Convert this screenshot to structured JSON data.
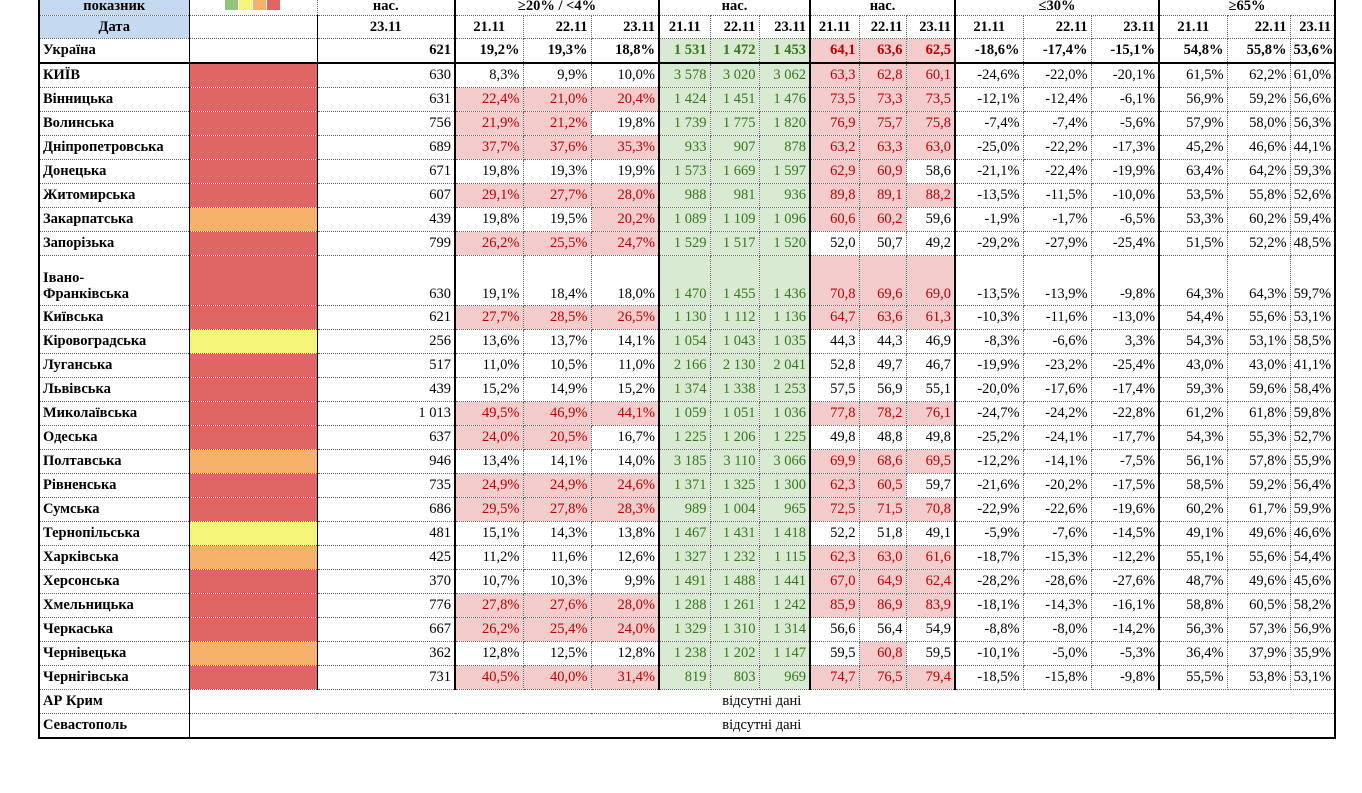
{
  "colors": {
    "red": "#e06666",
    "orange": "#f6b26b",
    "yellow": "#f5f57a",
    "green": "#93c47d",
    "header_blue": "#c5d9f1",
    "pink": "#f4cccc",
    "light_green": "#d9ead3"
  },
  "header": {
    "indicator_label": "показник",
    "legend_swatches": [
      "green",
      "yellow",
      "orange",
      "red"
    ],
    "col_pop_top": "нас.",
    "group1_top": "≥20% / <4%",
    "group2_top": "нас.",
    "group3_top": "нас.",
    "group4_top": "≤30%",
    "group5_top": "≥65%",
    "date_label": "Дата",
    "date_single": "23.11",
    "dates": [
      "21.11",
      "22.11",
      "23.11"
    ]
  },
  "ukraine": {
    "name": "Україна",
    "v": "621",
    "a": [
      "19,2%",
      "19,3%",
      "18,8%"
    ],
    "b": [
      "1 531",
      "1 472",
      "1 453"
    ],
    "c": [
      "64,1",
      "63,6",
      "62,5"
    ],
    "d": [
      "-18,6%",
      "-17,4%",
      "-15,1%"
    ],
    "e": [
      "54,8%",
      "55,8%",
      "53,6%"
    ]
  },
  "rows": [
    {
      "name": "КИЇВ",
      "cat": "red",
      "v": "630",
      "a": [
        "8,3%",
        "9,9%",
        "10,0%"
      ],
      "b": [
        "3 578",
        "3 020",
        "3 062"
      ],
      "c": [
        "63,3",
        "62,8",
        "60,1"
      ],
      "d": [
        "-24,6%",
        "-22,0%",
        "-20,1%"
      ],
      "e": [
        "61,5%",
        "62,2%",
        "61,0%"
      ]
    },
    {
      "name": "Вінницька",
      "cat": "red",
      "v": "631",
      "a": [
        "22,4%",
        "21,0%",
        "20,4%"
      ],
      "b": [
        "1 424",
        "1 451",
        "1 476"
      ],
      "c": [
        "73,5",
        "73,3",
        "73,5"
      ],
      "d": [
        "-12,1%",
        "-12,4%",
        "-6,1%"
      ],
      "e": [
        "56,9%",
        "59,2%",
        "56,6%"
      ]
    },
    {
      "name": "Волинська",
      "cat": "red",
      "v": "756",
      "a": [
        "21,9%",
        "21,2%",
        "19,8%"
      ],
      "b": [
        "1 739",
        "1 775",
        "1 820"
      ],
      "c": [
        "76,9",
        "75,7",
        "75,8"
      ],
      "d": [
        "-7,4%",
        "-7,4%",
        "-5,6%"
      ],
      "e": [
        "57,9%",
        "58,0%",
        "56,3%"
      ]
    },
    {
      "name": "Дніпропетровська",
      "cat": "red",
      "v": "689",
      "a": [
        "37,7%",
        "37,6%",
        "35,3%"
      ],
      "b": [
        "933",
        "907",
        "878"
      ],
      "c": [
        "63,2",
        "63,3",
        "63,0"
      ],
      "d": [
        "-25,0%",
        "-22,2%",
        "-17,3%"
      ],
      "e": [
        "45,2%",
        "46,6%",
        "44,1%"
      ]
    },
    {
      "name": "Донецька",
      "cat": "red",
      "v": "671",
      "a": [
        "19,8%",
        "19,3%",
        "19,9%"
      ],
      "b": [
        "1 573",
        "1 669",
        "1 597"
      ],
      "c": [
        "62,9",
        "60,9",
        "58,6"
      ],
      "d": [
        "-21,1%",
        "-22,4%",
        "-19,9%"
      ],
      "e": [
        "63,4%",
        "64,2%",
        "59,3%"
      ]
    },
    {
      "name": "Житомирська",
      "cat": "red",
      "v": "607",
      "a": [
        "29,1%",
        "27,7%",
        "28,0%"
      ],
      "b": [
        "988",
        "981",
        "936"
      ],
      "c": [
        "89,8",
        "89,1",
        "88,2"
      ],
      "d": [
        "-13,5%",
        "-11,5%",
        "-10,0%"
      ],
      "e": [
        "53,5%",
        "55,8%",
        "52,6%"
      ]
    },
    {
      "name": "Закарпатська",
      "cat": "orange",
      "v": "439",
      "a": [
        "19,8%",
        "19,5%",
        "20,2%"
      ],
      "b": [
        "1 089",
        "1 109",
        "1 096"
      ],
      "c": [
        "60,6",
        "60,2",
        "59,6"
      ],
      "d": [
        "-1,9%",
        "-1,7%",
        "-6,5%"
      ],
      "e": [
        "53,3%",
        "60,2%",
        "59,4%"
      ]
    },
    {
      "name": "Запорізька",
      "cat": "red",
      "v": "799",
      "a": [
        "26,2%",
        "25,5%",
        "24,7%"
      ],
      "b": [
        "1 529",
        "1 517",
        "1 520"
      ],
      "c": [
        "52,0",
        "50,7",
        "49,2"
      ],
      "d": [
        "-29,2%",
        "-27,9%",
        "-25,4%"
      ],
      "e": [
        "51,5%",
        "52,2%",
        "48,5%"
      ]
    },
    {
      "name": "Івано-",
      "name2": "Франківська",
      "cat": "red",
      "v": "630",
      "a": [
        "19,1%",
        "18,4%",
        "18,0%"
      ],
      "b": [
        "1 470",
        "1 455",
        "1 436"
      ],
      "c": [
        "70,8",
        "69,6",
        "69,0"
      ],
      "d": [
        "-13,5%",
        "-13,9%",
        "-9,8%"
      ],
      "e": [
        "64,3%",
        "64,3%",
        "59,7%"
      ]
    },
    {
      "name": "Київська",
      "cat": "red",
      "v": "621",
      "a": [
        "27,7%",
        "28,5%",
        "26,5%"
      ],
      "b": [
        "1 130",
        "1 112",
        "1 136"
      ],
      "c": [
        "64,7",
        "63,6",
        "61,3"
      ],
      "d": [
        "-10,3%",
        "-11,6%",
        "-13,0%"
      ],
      "e": [
        "54,4%",
        "55,6%",
        "53,1%"
      ]
    },
    {
      "name": "Кіровоградська",
      "cat": "yellow",
      "v": "256",
      "a": [
        "13,6%",
        "13,7%",
        "14,1%"
      ],
      "b": [
        "1 054",
        "1 043",
        "1 035"
      ],
      "c": [
        "44,3",
        "44,3",
        "46,9"
      ],
      "d": [
        "-8,3%",
        "-6,6%",
        "3,3%"
      ],
      "e": [
        "54,3%",
        "53,1%",
        "58,5%"
      ]
    },
    {
      "name": "Луганська",
      "cat": "red",
      "v": "517",
      "a": [
        "11,0%",
        "10,5%",
        "11,0%"
      ],
      "b": [
        "2 166",
        "2 130",
        "2 041"
      ],
      "c": [
        "52,8",
        "49,7",
        "46,7"
      ],
      "d": [
        "-19,9%",
        "-23,2%",
        "-25,4%"
      ],
      "e": [
        "43,0%",
        "43,0%",
        "41,1%"
      ]
    },
    {
      "name": "Львівська",
      "cat": "red",
      "v": "439",
      "a": [
        "15,2%",
        "14,9%",
        "15,2%"
      ],
      "b": [
        "1 374",
        "1 338",
        "1 253"
      ],
      "c": [
        "57,5",
        "56,9",
        "55,1"
      ],
      "d": [
        "-20,0%",
        "-17,6%",
        "-17,4%"
      ],
      "e": [
        "59,3%",
        "59,6%",
        "58,4%"
      ]
    },
    {
      "name": "Миколаївська",
      "cat": "red",
      "v": "1 013",
      "a": [
        "49,5%",
        "46,9%",
        "44,1%"
      ],
      "b": [
        "1 059",
        "1 051",
        "1 036"
      ],
      "c": [
        "77,8",
        "78,2",
        "76,1"
      ],
      "d": [
        "-24,7%",
        "-24,2%",
        "-22,8%"
      ],
      "e": [
        "61,2%",
        "61,8%",
        "59,8%"
      ]
    },
    {
      "name": "Одеська",
      "cat": "red",
      "v": "637",
      "a": [
        "24,0%",
        "20,5%",
        "16,7%"
      ],
      "b": [
        "1 225",
        "1 206",
        "1 225"
      ],
      "c": [
        "49,8",
        "48,8",
        "49,8"
      ],
      "d": [
        "-25,2%",
        "-24,1%",
        "-17,7%"
      ],
      "e": [
        "54,3%",
        "55,3%",
        "52,7%"
      ]
    },
    {
      "name": "Полтавська",
      "cat": "orange",
      "v": "946",
      "a": [
        "13,4%",
        "14,1%",
        "14,0%"
      ],
      "b": [
        "3 185",
        "3 110",
        "3 066"
      ],
      "c": [
        "69,9",
        "68,6",
        "69,5"
      ],
      "d": [
        "-12,2%",
        "-14,1%",
        "-7,5%"
      ],
      "e": [
        "56,1%",
        "57,8%",
        "55,9%"
      ]
    },
    {
      "name": "Рівненська",
      "cat": "red",
      "v": "735",
      "a": [
        "24,9%",
        "24,9%",
        "24,6%"
      ],
      "b": [
        "1 371",
        "1 325",
        "1 300"
      ],
      "c": [
        "62,3",
        "60,5",
        "59,7"
      ],
      "d": [
        "-21,6%",
        "-20,2%",
        "-17,5%"
      ],
      "e": [
        "58,5%",
        "59,2%",
        "56,4%"
      ]
    },
    {
      "name": "Сумська",
      "cat": "red",
      "v": "686",
      "a": [
        "29,5%",
        "27,8%",
        "28,3%"
      ],
      "b": [
        "989",
        "1 004",
        "965"
      ],
      "c": [
        "72,5",
        "71,5",
        "70,8"
      ],
      "d": [
        "-22,9%",
        "-22,6%",
        "-19,6%"
      ],
      "e": [
        "60,2%",
        "61,7%",
        "59,9%"
      ]
    },
    {
      "name": "Тернопільська",
      "cat": "yellow",
      "v": "481",
      "a": [
        "15,1%",
        "14,3%",
        "13,8%"
      ],
      "b": [
        "1 467",
        "1 431",
        "1 418"
      ],
      "c": [
        "52,2",
        "51,8",
        "49,1"
      ],
      "d": [
        "-5,9%",
        "-7,6%",
        "-14,5%"
      ],
      "e": [
        "49,1%",
        "49,6%",
        "46,6%"
      ]
    },
    {
      "name": "Харківська",
      "cat": "orange",
      "v": "425",
      "a": [
        "11,2%",
        "11,6%",
        "12,6%"
      ],
      "b": [
        "1 327",
        "1 232",
        "1 115"
      ],
      "c": [
        "62,3",
        "63,0",
        "61,6"
      ],
      "d": [
        "-18,7%",
        "-15,3%",
        "-12,2%"
      ],
      "e": [
        "55,1%",
        "55,6%",
        "54,4%"
      ]
    },
    {
      "name": "Херсонська",
      "cat": "red",
      "v": "370",
      "a": [
        "10,7%",
        "10,3%",
        "9,9%"
      ],
      "b": [
        "1 491",
        "1 488",
        "1 441"
      ],
      "c": [
        "67,0",
        "64,9",
        "62,4"
      ],
      "d": [
        "-28,2%",
        "-28,6%",
        "-27,6%"
      ],
      "e": [
        "48,7%",
        "49,6%",
        "45,6%"
      ]
    },
    {
      "name": "Хмельницька",
      "cat": "red",
      "v": "776",
      "a": [
        "27,8%",
        "27,6%",
        "28,0%"
      ],
      "b": [
        "1 288",
        "1 261",
        "1 242"
      ],
      "c": [
        "85,9",
        "86,9",
        "83,9"
      ],
      "d": [
        "-18,1%",
        "-14,3%",
        "-16,1%"
      ],
      "e": [
        "58,8%",
        "60,5%",
        "58,2%"
      ]
    },
    {
      "name": "Черкаська",
      "cat": "red",
      "v": "667",
      "a": [
        "26,2%",
        "25,4%",
        "24,0%"
      ],
      "b": [
        "1 329",
        "1 310",
        "1 314"
      ],
      "c": [
        "56,6",
        "56,4",
        "54,9"
      ],
      "d": [
        "-8,8%",
        "-8,0%",
        "-14,2%"
      ],
      "e": [
        "56,3%",
        "57,3%",
        "56,9%"
      ]
    },
    {
      "name": "Чернівецька",
      "cat": "orange",
      "v": "362",
      "a": [
        "12,8%",
        "12,5%",
        "12,8%"
      ],
      "b": [
        "1 238",
        "1 202",
        "1 147"
      ],
      "c": [
        "59,5",
        "60,8",
        "59,5"
      ],
      "d": [
        "-10,1%",
        "-5,0%",
        "-5,3%"
      ],
      "e": [
        "36,4%",
        "37,9%",
        "35,9%"
      ]
    },
    {
      "name": "Чернігівська",
      "cat": "red",
      "v": "731",
      "a": [
        "40,5%",
        "40,0%",
        "31,4%"
      ],
      "b": [
        "819",
        "803",
        "969"
      ],
      "c": [
        "74,7",
        "76,5",
        "79,4"
      ],
      "d": [
        "-18,5%",
        "-15,8%",
        "-9,8%"
      ],
      "e": [
        "55,5%",
        "53,8%",
        "53,1%"
      ]
    }
  ],
  "nodata_rows": [
    {
      "name": "АР Крим",
      "text": "відсутні дані"
    },
    {
      "name": "Севастополь",
      "text": "відсутні дані"
    }
  ]
}
